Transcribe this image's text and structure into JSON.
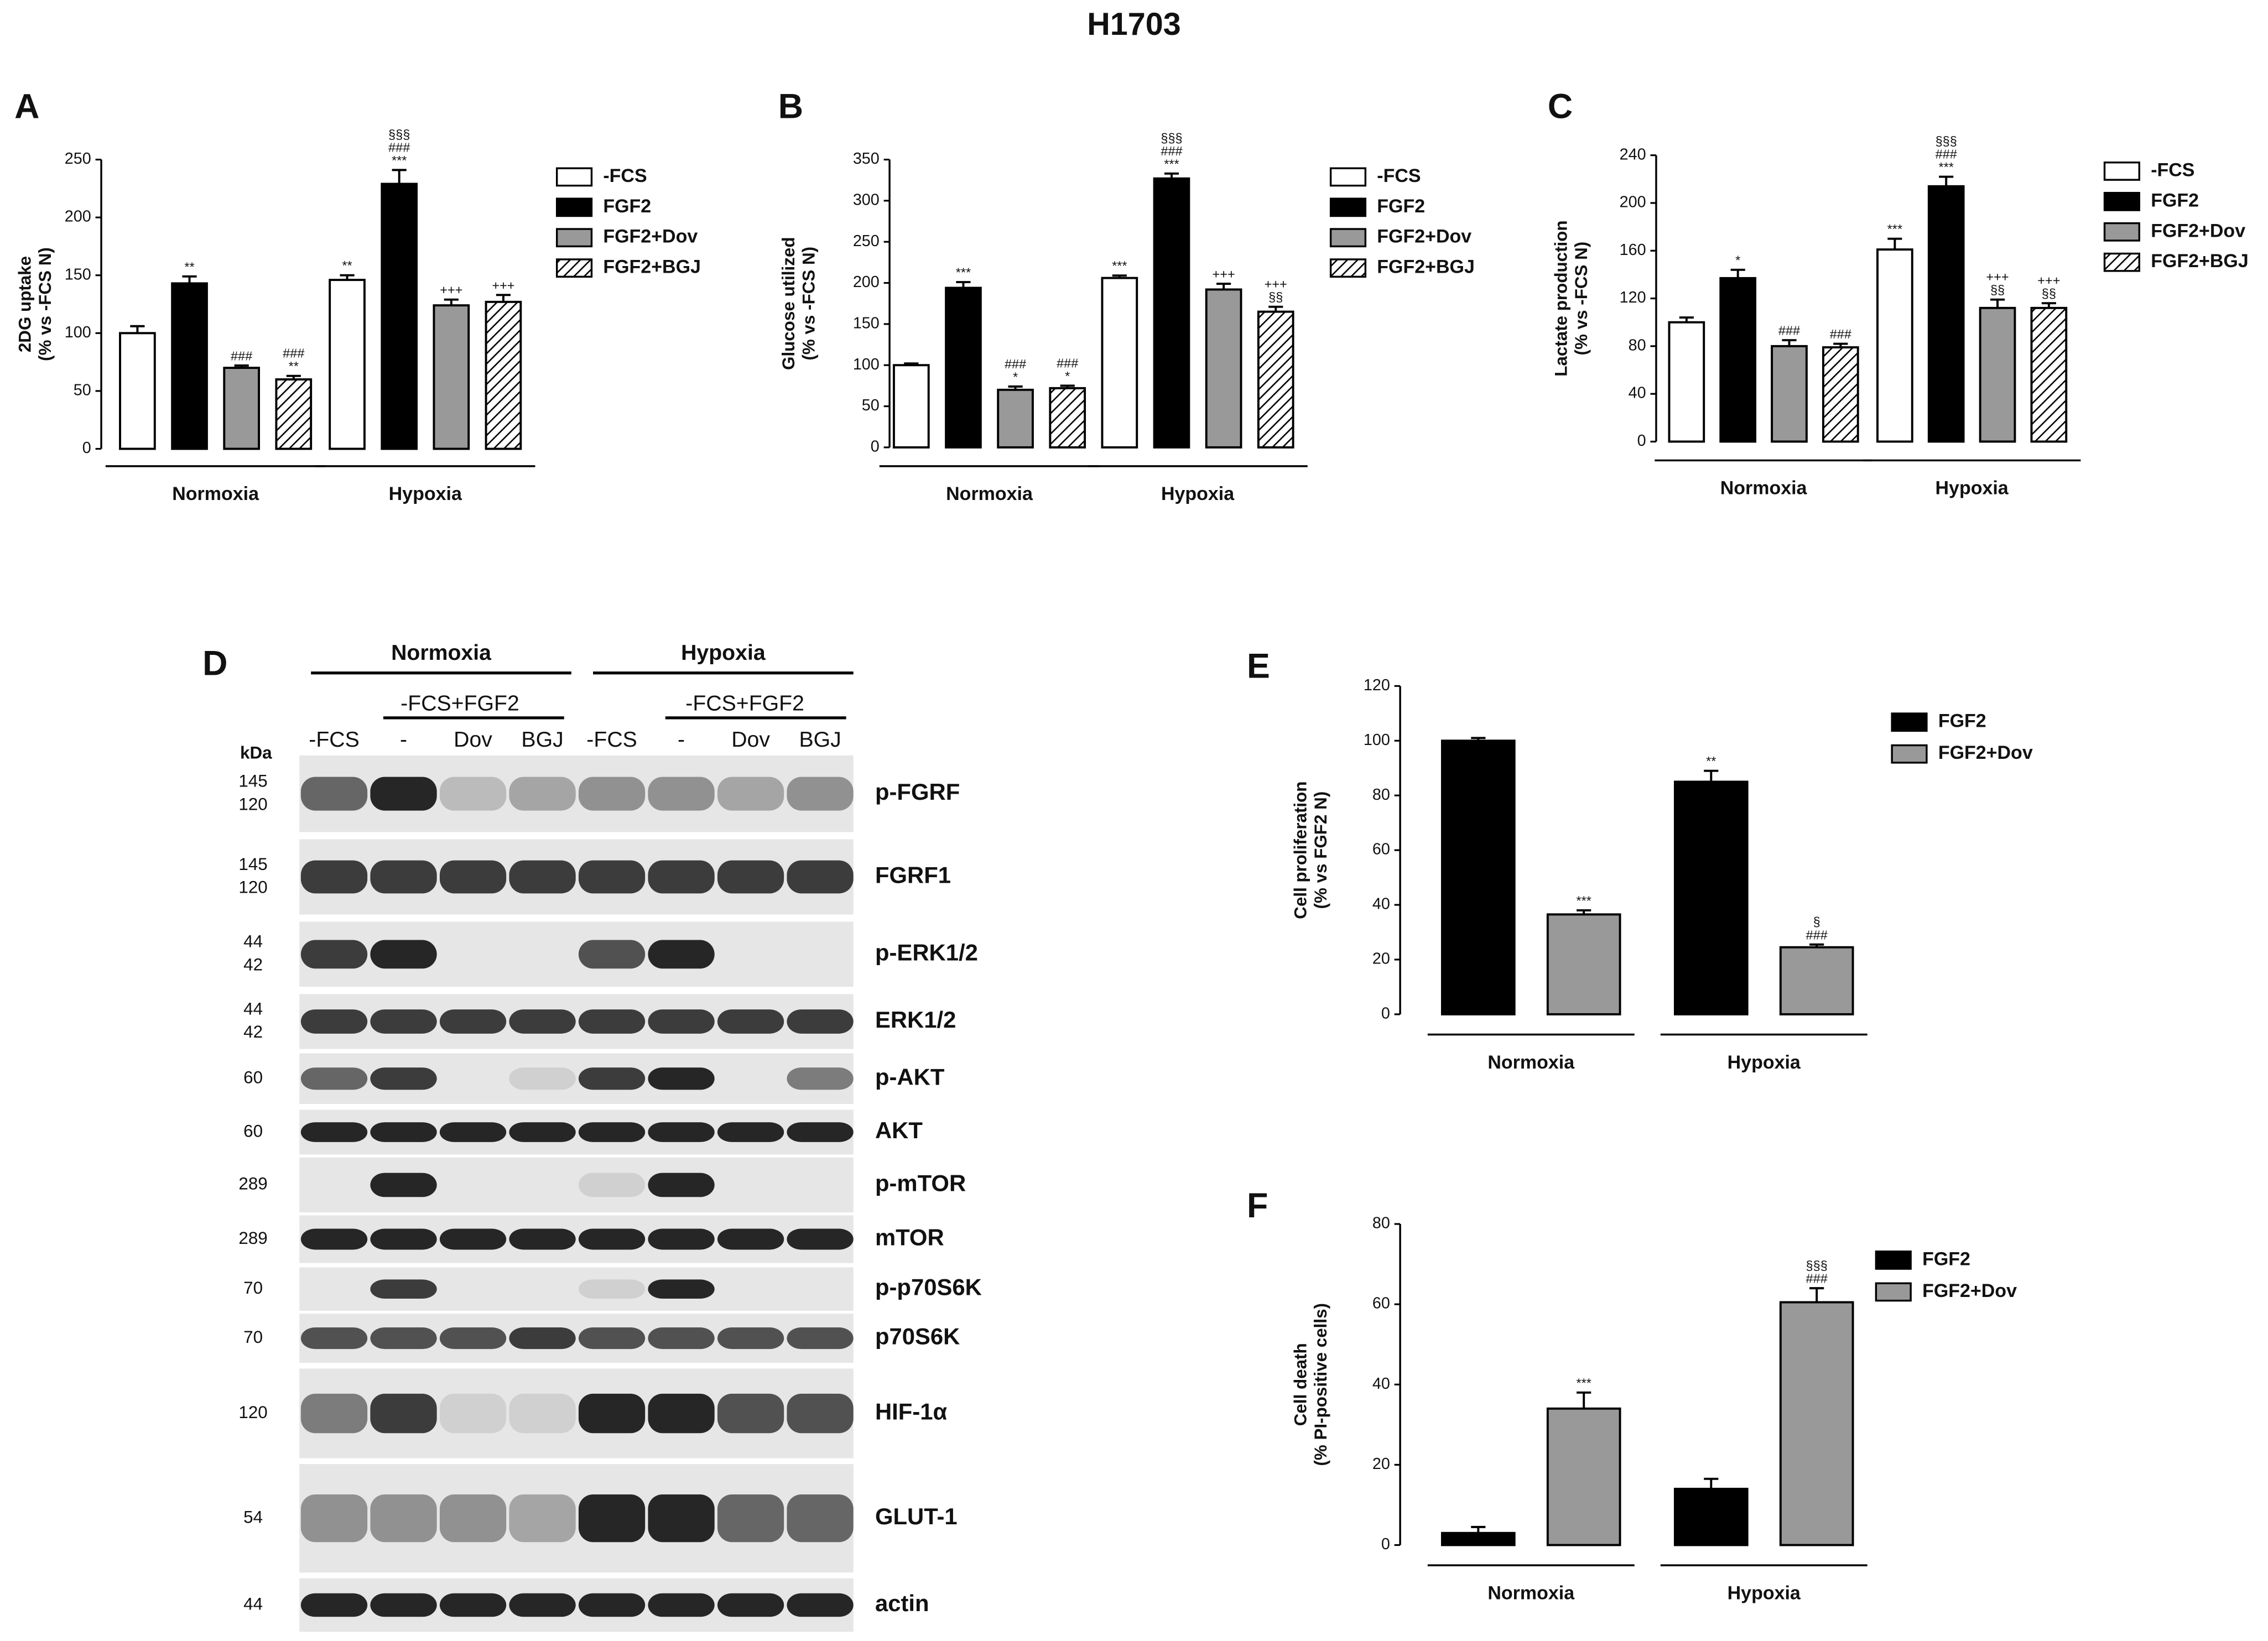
{
  "title": "H1703",
  "chart_data": [
    {
      "type": "bar",
      "panel_label": "A",
      "ylabel": [
        "2DG uptake",
        "(% vs -FCS N)"
      ],
      "categories": [
        "Normoxia",
        "Hypoxia"
      ],
      "ylim": [
        0,
        250
      ],
      "yticks": [
        0,
        50,
        100,
        150,
        200,
        250
      ],
      "series": [
        {
          "name": "-FCS",
          "color": "#ffffff",
          "values": [
            100,
            146
          ],
          "errors": [
            6,
            4
          ],
          "annotations": [
            null,
            [
              "**"
            ]
          ]
        },
        {
          "name": "FGF2",
          "color": "#000000",
          "values": [
            143,
            229
          ],
          "errors": [
            6,
            12
          ],
          "annotations": [
            [
              "**"
            ],
            [
              "§§§",
              "###",
              "***"
            ]
          ]
        },
        {
          "name": "FGF2+Dov",
          "color": "#999999",
          "values": [
            70,
            124
          ],
          "errors": [
            2,
            5
          ],
          "annotations": [
            [
              "###"
            ],
            [
              "+++"
            ]
          ]
        },
        {
          "name": "FGF2+BGJ",
          "color": "#ffffff",
          "hatch": true,
          "values": [
            60,
            127
          ],
          "errors": [
            3,
            6
          ],
          "annotations": [
            [
              "###",
              "**"
            ],
            [
              "+++"
            ]
          ]
        }
      ]
    },
    {
      "type": "bar",
      "panel_label": "B",
      "ylabel": [
        "Glucose utilized",
        "(% vs -FCS N)"
      ],
      "categories": [
        "Normoxia",
        "Hypoxia"
      ],
      "ylim": [
        0,
        350
      ],
      "yticks": [
        0,
        50,
        100,
        150,
        200,
        250,
        300,
        350
      ],
      "series": [
        {
          "name": "-FCS",
          "color": "#ffffff",
          "values": [
            100,
            206
          ],
          "errors": [
            2,
            3
          ],
          "annotations": [
            null,
            [
              "***"
            ]
          ]
        },
        {
          "name": "FGF2",
          "color": "#000000",
          "values": [
            194,
            327
          ],
          "errors": [
            7,
            6
          ],
          "annotations": [
            [
              "***"
            ],
            [
              "§§§",
              "###",
              "***"
            ]
          ]
        },
        {
          "name": "FGF2+Dov",
          "color": "#999999",
          "values": [
            70,
            192
          ],
          "errors": [
            4,
            7
          ],
          "annotations": [
            [
              "###",
              "*"
            ],
            [
              "+++"
            ]
          ]
        },
        {
          "name": "FGF2+BGJ",
          "color": "#ffffff",
          "hatch": true,
          "values": [
            72,
            165
          ],
          "errors": [
            3,
            6
          ],
          "annotations": [
            [
              "###",
              "*"
            ],
            [
              "+++",
              "§§"
            ]
          ]
        }
      ]
    },
    {
      "type": "bar",
      "panel_label": "C",
      "ylabel": [
        "Lactate production",
        "(% vs -FCS N)"
      ],
      "categories": [
        "Normoxia",
        "Hypoxia"
      ],
      "ylim": [
        0,
        240
      ],
      "yticks": [
        0,
        40,
        80,
        120,
        160,
        200,
        240
      ],
      "series": [
        {
          "name": "-FCS",
          "color": "#ffffff",
          "values": [
            100,
            161
          ],
          "errors": [
            4,
            9
          ],
          "annotations": [
            null,
            [
              "***"
            ]
          ]
        },
        {
          "name": "FGF2",
          "color": "#000000",
          "values": [
            137,
            214
          ],
          "errors": [
            7,
            8
          ],
          "annotations": [
            [
              "*"
            ],
            [
              "§§§",
              "###",
              "***"
            ]
          ]
        },
        {
          "name": "FGF2+Dov",
          "color": "#999999",
          "values": [
            80,
            112
          ],
          "errors": [
            5,
            7
          ],
          "annotations": [
            [
              "###"
            ],
            [
              "+++",
              "§§"
            ]
          ]
        },
        {
          "name": "FGF2+BGJ",
          "color": "#ffffff",
          "hatch": true,
          "values": [
            79,
            112
          ],
          "errors": [
            3,
            4
          ],
          "annotations": [
            [
              "###"
            ],
            [
              "+++",
              "§§"
            ]
          ]
        }
      ]
    },
    {
      "type": "bar",
      "panel_label": "E",
      "ylabel": [
        "Cell proliferation",
        "(% vs FGF2 N)"
      ],
      "categories": [
        "Normoxia",
        "Hypoxia"
      ],
      "ylim": [
        0,
        120
      ],
      "yticks": [
        0,
        20,
        40,
        60,
        80,
        100,
        120
      ],
      "series": [
        {
          "name": "FGF2",
          "color": "#000000",
          "values": [
            100,
            85
          ],
          "errors": [
            1,
            4
          ],
          "annotations": [
            null,
            [
              "**"
            ]
          ]
        },
        {
          "name": "FGF2+Dov",
          "color": "#999999",
          "values": [
            36.5,
            24.5
          ],
          "errors": [
            1.5,
            1
          ],
          "annotations": [
            [
              "***"
            ],
            [
              "§",
              "###"
            ]
          ]
        }
      ]
    },
    {
      "type": "bar",
      "panel_label": "F",
      "ylabel": [
        "Cell death",
        "(% PI-positive cells)"
      ],
      "categories": [
        "Normoxia",
        "Hypoxia"
      ],
      "ylim": [
        0,
        80
      ],
      "yticks": [
        0,
        20,
        40,
        60,
        80
      ],
      "series": [
        {
          "name": "FGF2",
          "color": "#000000",
          "values": [
            3,
            14
          ],
          "errors": [
            1.5,
            2.5
          ],
          "annotations": [
            null,
            null
          ]
        },
        {
          "name": "FGF2+Dov",
          "color": "#999999",
          "values": [
            34,
            60.5
          ],
          "errors": [
            4,
            3.5
          ],
          "annotations": [
            [
              "***"
            ],
            [
              "§§§",
              "###"
            ]
          ]
        }
      ]
    }
  ],
  "blot": {
    "panel_label": "D",
    "groups": [
      "Normoxia",
      "Hypoxia"
    ],
    "subgroups": [
      "-FCS+FGF2",
      "-FCS+FGF2"
    ],
    "lanes": [
      "-FCS",
      "-",
      "Dov",
      "BGJ",
      "-FCS",
      "-",
      "Dov",
      "BGJ"
    ],
    "kda_label": "kDa",
    "rows": [
      {
        "label": "p-FGRF",
        "kda": [
          "145",
          "120"
        ]
      },
      {
        "label": "FGRF1",
        "kda": [
          "145",
          "120"
        ]
      },
      {
        "label": "p-ERK1/2",
        "kda": [
          "44",
          "42"
        ]
      },
      {
        "label": "ERK1/2",
        "kda": [
          "44",
          "42"
        ]
      },
      {
        "label": "p-AKT",
        "kda": [
          "60"
        ]
      },
      {
        "label": "AKT",
        "kda": [
          "60"
        ]
      },
      {
        "label": "p-mTOR",
        "kda": [
          "289"
        ]
      },
      {
        "label": "mTOR",
        "kda": [
          "289"
        ]
      },
      {
        "label": "p-p70S6K",
        "kda": [
          "70"
        ]
      },
      {
        "label": "p70S6K",
        "kda": [
          "70"
        ]
      },
      {
        "label": "HIF-1α",
        "kda": [
          "120"
        ]
      },
      {
        "label": "GLUT-1",
        "kda": [
          "54"
        ]
      },
      {
        "label": "actin",
        "kda": [
          "44"
        ]
      }
    ]
  }
}
